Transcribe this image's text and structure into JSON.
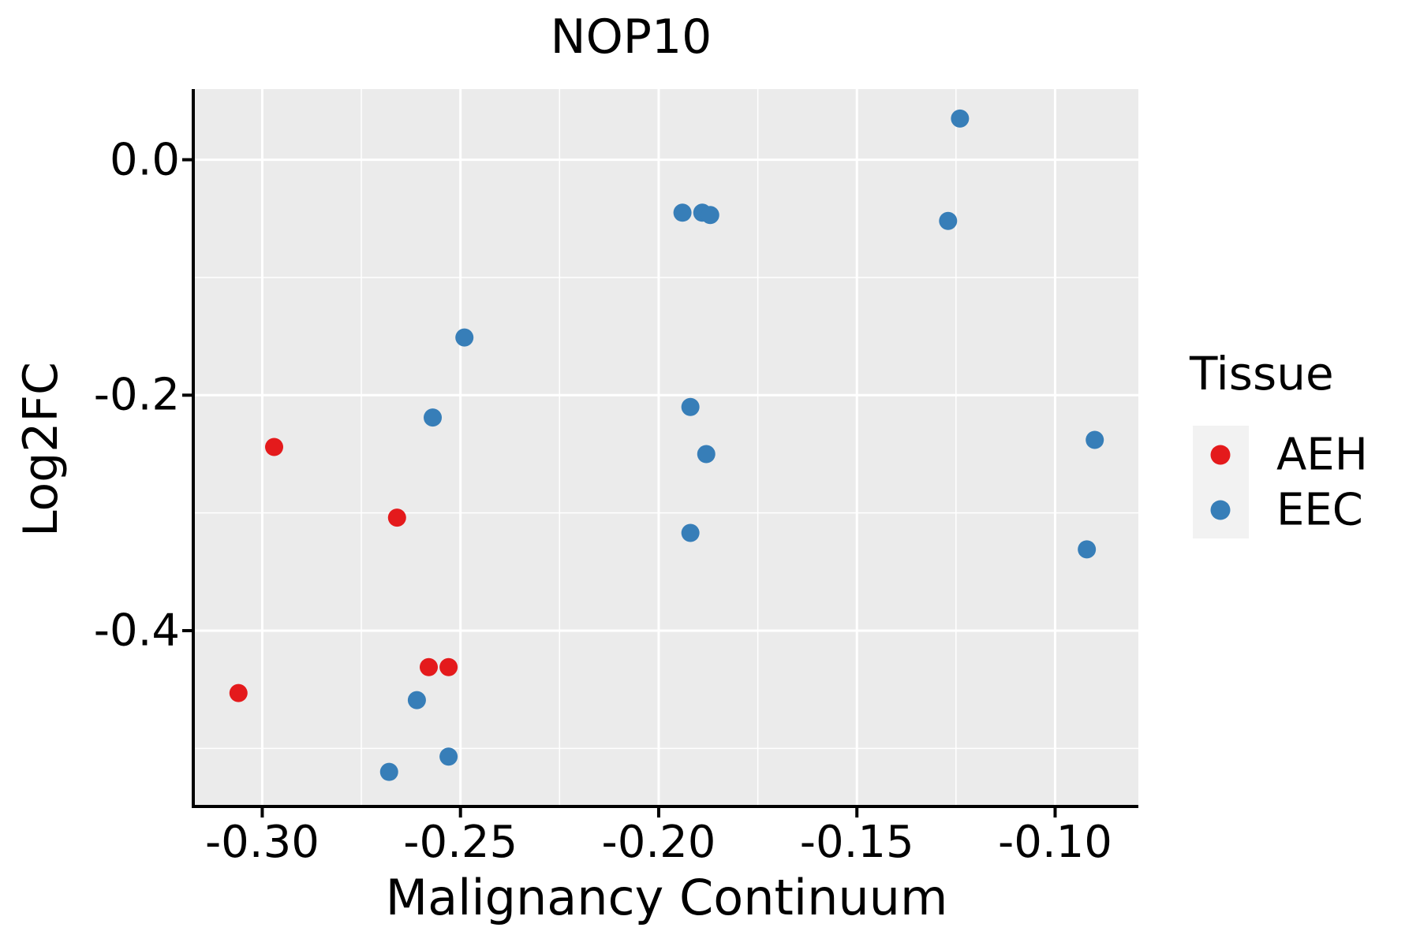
{
  "title": "NOP10",
  "axes": {
    "x": {
      "label": "Malignancy Continuum",
      "tick_labels": [
        "-0.30",
        "-0.25",
        "-0.20",
        "-0.15",
        "-0.10"
      ],
      "tick_values": [
        -0.3,
        -0.25,
        -0.2,
        -0.15,
        -0.1
      ],
      "minor_values": [
        -0.275,
        -0.225,
        -0.175,
        -0.125
      ],
      "range": [
        -0.317,
        -0.079
      ]
    },
    "y": {
      "label": "Log2FC",
      "tick_labels": [
        "0.0",
        "-0.2",
        "-0.4"
      ],
      "tick_values": [
        0.0,
        -0.2,
        -0.4
      ],
      "minor_values": [
        -0.1,
        -0.3,
        -0.5
      ],
      "range": [
        -0.548,
        0.06
      ]
    }
  },
  "legend": {
    "title": "Tissue",
    "items": [
      {
        "label": "AEH",
        "color": "#E41A1C"
      },
      {
        "label": "EEC",
        "color": "#377EB8"
      }
    ]
  },
  "colors": {
    "panel_background": "#EBEBEB",
    "gridline": "#FFFFFF",
    "axis_line": "#000000",
    "legend_key_background": "#F2F2F2",
    "aeh": "#E41A1C",
    "eec": "#377EB8"
  },
  "chart_data": {
    "type": "scatter",
    "title": "NOP10",
    "xlabel": "Malignancy Continuum",
    "ylabel": "Log2FC",
    "xlim": [
      -0.317,
      -0.079
    ],
    "ylim": [
      -0.548,
      0.06
    ],
    "grid": true,
    "legend_position": "right",
    "series": [
      {
        "name": "AEH",
        "color": "#E41A1C",
        "points": [
          [
            -0.297,
            -0.244
          ],
          [
            -0.266,
            -0.304
          ],
          [
            -0.258,
            -0.431
          ],
          [
            -0.253,
            -0.431
          ],
          [
            -0.306,
            -0.453
          ]
        ]
      },
      {
        "name": "EEC",
        "color": "#377EB8",
        "points": [
          [
            -0.124,
            0.035
          ],
          [
            -0.194,
            -0.045
          ],
          [
            -0.189,
            -0.045
          ],
          [
            -0.187,
            -0.047
          ],
          [
            -0.127,
            -0.052
          ],
          [
            -0.249,
            -0.151
          ],
          [
            -0.192,
            -0.21
          ],
          [
            -0.257,
            -0.219
          ],
          [
            -0.09,
            -0.238
          ],
          [
            -0.188,
            -0.25
          ],
          [
            -0.192,
            -0.317
          ],
          [
            -0.092,
            -0.331
          ],
          [
            -0.261,
            -0.459
          ],
          [
            -0.253,
            -0.507
          ],
          [
            -0.268,
            -0.52
          ]
        ]
      }
    ]
  }
}
